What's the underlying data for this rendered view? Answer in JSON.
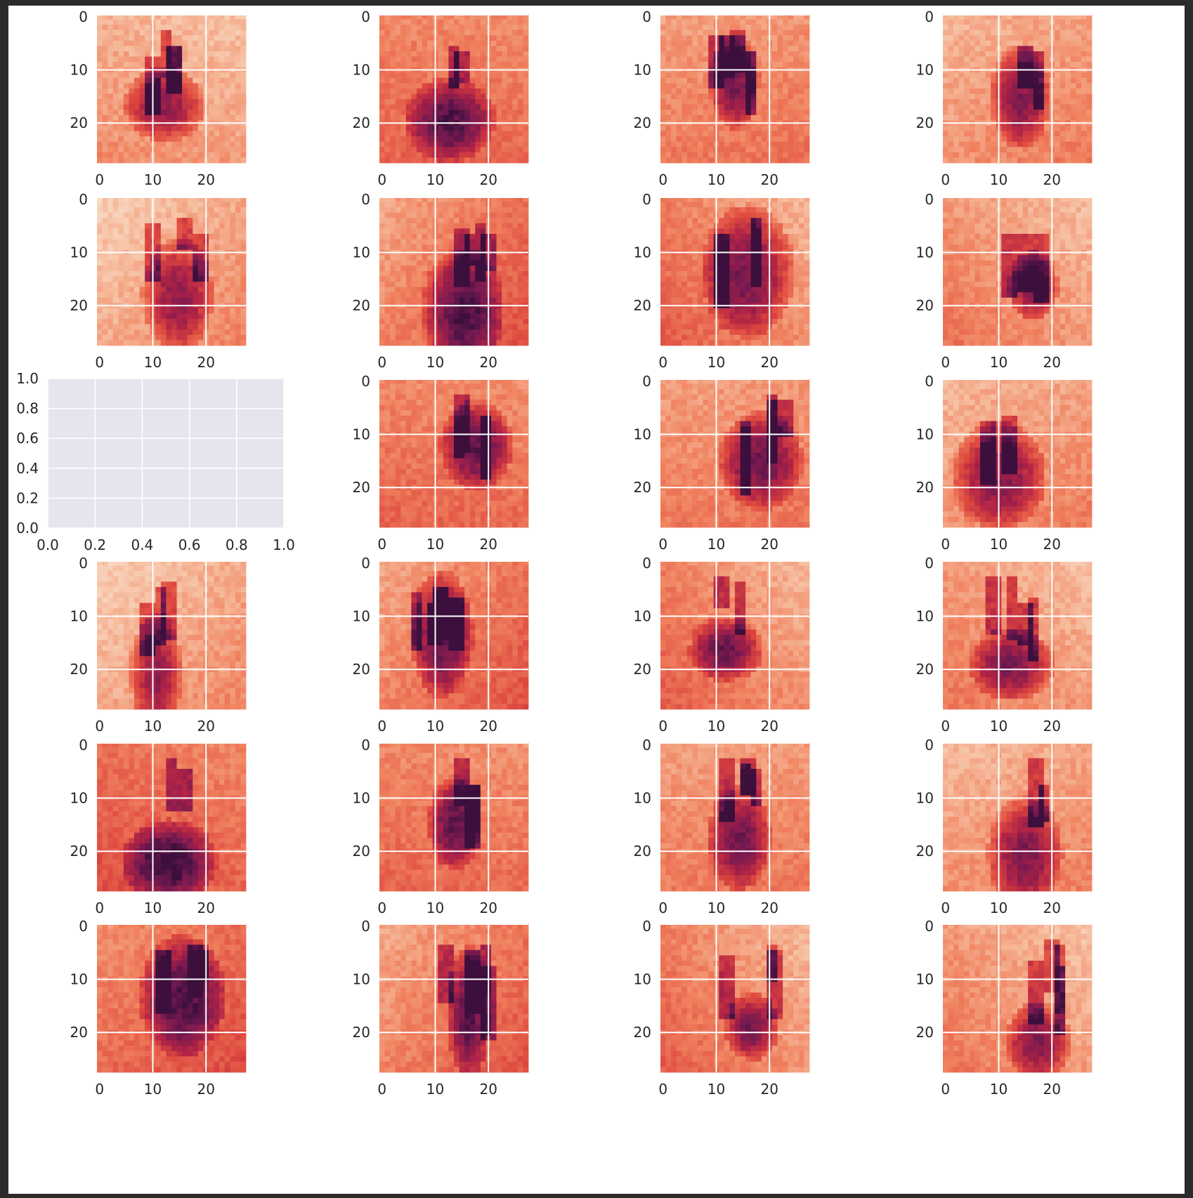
{
  "figure": {
    "background": "#ffffff",
    "frame_color": "#2b2b2b",
    "grid_color": "#ffffff",
    "empty_axes_facecolor": "#e5e5ee",
    "colormap": "rocket_r"
  },
  "chart_data": {
    "type": "heatmap",
    "layout": {
      "rows": 6,
      "cols": 4
    },
    "image_ticks": {
      "x": [
        "0",
        "10",
        "20"
      ],
      "y": [
        "0",
        "10",
        "20"
      ],
      "xlim": [
        0,
        27
      ],
      "ylim": [
        27,
        0
      ]
    },
    "empty_axes": {
      "row": 3,
      "col": 1,
      "xlim": [
        0.0,
        1.0
      ],
      "ylim": [
        0.0,
        1.0
      ],
      "x_ticks": [
        "0.0",
        "0.2",
        "0.4",
        "0.6",
        "0.8",
        "1.0"
      ],
      "y_ticks": [
        "1.0",
        "0.8",
        "0.6",
        "0.4",
        "0.2",
        "0.0"
      ]
    },
    "grid": true,
    "panels": [
      {
        "row": 1,
        "col": 1,
        "kind": "image"
      },
      {
        "row": 1,
        "col": 2,
        "kind": "image"
      },
      {
        "row": 1,
        "col": 3,
        "kind": "image"
      },
      {
        "row": 1,
        "col": 4,
        "kind": "image"
      },
      {
        "row": 2,
        "col": 1,
        "kind": "image"
      },
      {
        "row": 2,
        "col": 2,
        "kind": "image"
      },
      {
        "row": 2,
        "col": 3,
        "kind": "image"
      },
      {
        "row": 2,
        "col": 4,
        "kind": "image"
      },
      {
        "row": 3,
        "col": 1,
        "kind": "empty"
      },
      {
        "row": 3,
        "col": 2,
        "kind": "image"
      },
      {
        "row": 3,
        "col": 3,
        "kind": "image"
      },
      {
        "row": 3,
        "col": 4,
        "kind": "image"
      },
      {
        "row": 4,
        "col": 1,
        "kind": "image"
      },
      {
        "row": 4,
        "col": 2,
        "kind": "image"
      },
      {
        "row": 4,
        "col": 3,
        "kind": "image"
      },
      {
        "row": 4,
        "col": 4,
        "kind": "image"
      },
      {
        "row": 5,
        "col": 1,
        "kind": "image"
      },
      {
        "row": 5,
        "col": 2,
        "kind": "image"
      },
      {
        "row": 5,
        "col": 3,
        "kind": "image"
      },
      {
        "row": 5,
        "col": 4,
        "kind": "image"
      },
      {
        "row": 6,
        "col": 1,
        "kind": "image"
      },
      {
        "row": 6,
        "col": 2,
        "kind": "image"
      },
      {
        "row": 6,
        "col": 3,
        "kind": "image"
      },
      {
        "row": 6,
        "col": 4,
        "kind": "image"
      }
    ]
  }
}
